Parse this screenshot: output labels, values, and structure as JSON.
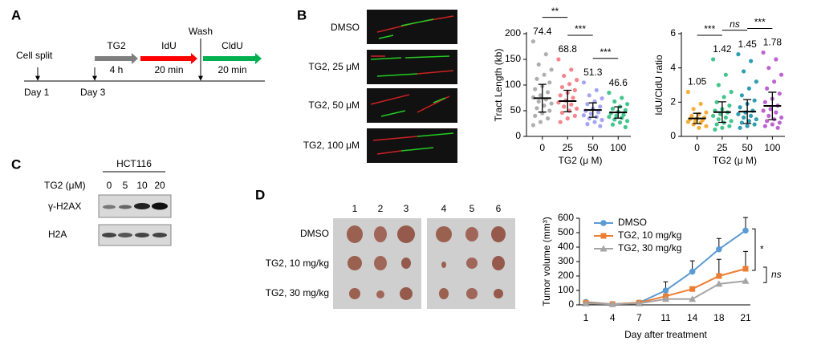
{
  "panel_labels": [
    "A",
    "B",
    "C",
    "D"
  ],
  "timeline": {
    "start": "Cell split",
    "days": [
      "Day 1",
      "Day 3"
    ],
    "wash": "Wash",
    "steps": [
      {
        "name": "TG2",
        "duration": "4 h",
        "color": "#7f7f7f"
      },
      {
        "name": "IdU",
        "duration": "20 min",
        "color": "#ff0000"
      },
      {
        "name": "CldU",
        "duration": "20 min",
        "color": "#00b050"
      }
    ]
  },
  "fiber_images": {
    "labels": [
      "DMSO",
      "TG2, 25 μM",
      "TG2, 50 μM",
      "TG2, 100 μM"
    ]
  },
  "blot": {
    "cell_line": "HCT116",
    "treatment_label": "TG2 (μM)",
    "lanes": [
      "0",
      "5",
      "10",
      "20"
    ],
    "proteins": [
      "γ-H2AX",
      "H2A"
    ]
  },
  "tumor_photos": {
    "mice": [
      "1",
      "2",
      "3",
      "4",
      "5",
      "6"
    ],
    "groups": [
      "DMSO",
      "TG2, 10 mg/kg",
      "TG2, 30 mg/kg"
    ]
  },
  "chart_data": [
    {
      "type": "dotplot",
      "y_label": "Tract Length (kb)",
      "x_label": "TG2 (μ M)",
      "categories": [
        "0",
        "25",
        "50",
        "100"
      ],
      "values": [
        74.4,
        68.8,
        51.3,
        46.6
      ],
      "errors": [
        27,
        21,
        14,
        11
      ],
      "colors": [
        "#a6a6a6",
        "#f4777f",
        "#9b9bf2",
        "#2fbf7f"
      ],
      "points": [
        [
          185,
          160,
          140,
          130,
          120,
          112,
          105,
          98,
          92,
          86,
          80,
          76,
          72,
          68,
          64,
          60,
          55,
          50,
          45,
          40,
          35,
          28,
          22
        ],
        [
          150,
          130,
          118,
          110,
          102,
          96,
          90,
          85,
          80,
          75,
          70,
          66,
          62,
          58,
          54,
          50,
          46,
          40,
          35,
          28
        ],
        [
          105,
          90,
          80,
          74,
          68,
          63,
          58,
          54,
          50,
          47,
          44,
          41,
          38,
          35,
          32,
          28,
          24,
          20
        ],
        [
          85,
          75,
          68,
          63,
          58,
          54,
          51,
          48,
          45,
          42,
          40,
          38,
          36,
          33,
          30,
          27,
          23,
          18
        ]
      ],
      "significance": [
        "**",
        "***",
        "***"
      ],
      "ylim": [
        0,
        200
      ],
      "yticks": [
        0,
        50,
        100,
        150,
        200
      ]
    },
    {
      "type": "dotplot",
      "y_label": "IdU/CldU ratio",
      "x_label": "TG2 (μ M)",
      "categories": [
        "0",
        "25",
        "50",
        "100"
      ],
      "values": [
        1.05,
        1.42,
        1.45,
        1.78
      ],
      "errors": [
        0.3,
        0.6,
        0.7,
        0.8
      ],
      "colors": [
        "#f5a623",
        "#2fbf7f",
        "#1a93a8",
        "#b553cc"
      ],
      "points": [
        [
          2.6,
          1.9,
          1.6,
          1.4,
          1.3,
          1.2,
          1.1,
          1.05,
          1.0,
          0.95,
          0.9,
          0.85,
          0.8,
          0.7,
          0.6,
          0.5
        ],
        [
          4.5,
          3.6,
          3.0,
          2.6,
          2.3,
          2.0,
          1.8,
          1.6,
          1.5,
          1.4,
          1.3,
          1.2,
          1.1,
          1.0,
          0.9,
          0.8,
          0.7,
          0.6,
          0.5,
          0.4
        ],
        [
          4.8,
          4.4,
          3.8,
          3.2,
          2.8,
          2.4,
          2.1,
          1.9,
          1.7,
          1.5,
          1.4,
          1.3,
          1.2,
          1.1,
          1.0,
          0.9,
          0.8,
          0.7,
          0.6,
          0.5
        ],
        [
          4.9,
          4.5,
          4.0,
          3.6,
          3.2,
          2.8,
          2.5,
          2.2,
          2.0,
          1.8,
          1.6,
          1.5,
          1.4,
          1.2,
          1.1,
          1.0,
          0.9,
          0.8,
          0.7,
          0.6,
          0.5
        ]
      ],
      "significance": [
        "***",
        "ns",
        "***"
      ],
      "ylim": [
        0,
        6
      ],
      "yticks": [
        0,
        2,
        4,
        6
      ]
    },
    {
      "type": "line",
      "y_label": "Tumor volume (mm³)",
      "x_label": "Day after treatment",
      "categories": [
        "1",
        "4",
        "7",
        "11",
        "14",
        "18",
        "21"
      ],
      "legend": "upper-left",
      "series": [
        {
          "name": "DMSO",
          "color": "#5b9bd5",
          "marker": "circle",
          "values": [
            20,
            5,
            15,
            100,
            230,
            385,
            515
          ],
          "errors": [
            0,
            0,
            0,
            60,
            75,
            75,
            90
          ]
        },
        {
          "name": "TG2, 10 mg/kg",
          "color": "#ed7d31",
          "marker": "square",
          "values": [
            15,
            5,
            15,
            60,
            110,
            200,
            250
          ],
          "errors": [
            0,
            0,
            0,
            0,
            0,
            115,
            120
          ]
        },
        {
          "name": "TG2, 30 mg/kg",
          "color": "#a5a5a5",
          "marker": "triangle",
          "values": [
            10,
            5,
            10,
            40,
            40,
            145,
            165
          ],
          "errors": [
            0,
            0,
            0,
            0,
            0,
            0,
            0
          ]
        }
      ],
      "significance": [
        "*",
        "ns"
      ],
      "ylim": [
        0,
        600
      ],
      "yticks": [
        0,
        100,
        200,
        300,
        400,
        500,
        600
      ]
    }
  ]
}
